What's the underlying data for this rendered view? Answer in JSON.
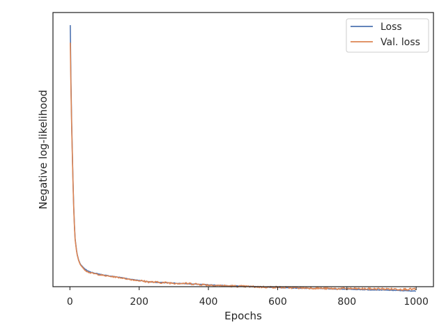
{
  "chart_data": {
    "type": "line",
    "title": "",
    "xlabel": "Epochs",
    "ylabel": "Negative log-likelihood",
    "xlim": [
      -49,
      1050
    ],
    "ylim": [
      0,
      1
    ],
    "x_ticks": [
      "0",
      "200",
      "400",
      "600",
      "800",
      "1000"
    ],
    "y_ticks_labeled": false,
    "grid": false,
    "legend_position": "top-right",
    "series": [
      {
        "name": "Loss",
        "color": "#4c72b0",
        "x": [
          1,
          2,
          3,
          5,
          8,
          10,
          12,
          15,
          20,
          25,
          30,
          40,
          50,
          60,
          80,
          100,
          120,
          150,
          175,
          200,
          225,
          250,
          300,
          350,
          400,
          450,
          500,
          550,
          600,
          650,
          700,
          750,
          800,
          850,
          900,
          950,
          1000
        ],
        "values": [
          0.954,
          0.86,
          0.745,
          0.6,
          0.43,
          0.33,
          0.25,
          0.175,
          0.123,
          0.098,
          0.082,
          0.068,
          0.058,
          0.053,
          0.047,
          0.042,
          0.038,
          0.033,
          0.027,
          0.023,
          0.018,
          0.016,
          0.013,
          0.01,
          0.007,
          0.004,
          0.002,
          -0.001,
          -0.003,
          -0.005,
          -0.006,
          -0.008,
          -0.009,
          -0.011,
          -0.012,
          -0.014,
          -0.016
        ]
      },
      {
        "name": "Val. loss",
        "color": "#dd8452",
        "x": [
          1,
          2,
          3,
          5,
          8,
          10,
          12,
          15,
          20,
          25,
          30,
          40,
          50,
          60,
          80,
          100,
          120,
          150,
          175,
          200,
          225,
          250,
          300,
          350,
          400,
          450,
          500,
          550,
          600,
          650,
          700,
          750,
          800,
          850,
          900,
          950,
          1000
        ],
        "values": [
          0.89,
          0.81,
          0.72,
          0.585,
          0.425,
          0.325,
          0.245,
          0.172,
          0.121,
          0.096,
          0.08,
          0.065,
          0.055,
          0.05,
          0.045,
          0.04,
          0.037,
          0.032,
          0.026,
          0.022,
          0.018,
          0.016,
          0.013,
          0.011,
          0.006,
          0.003,
          0.001,
          -0.001,
          -0.002,
          -0.004,
          -0.005,
          -0.007,
          -0.007,
          -0.008,
          -0.008,
          -0.009,
          -0.009
        ]
      }
    ]
  }
}
